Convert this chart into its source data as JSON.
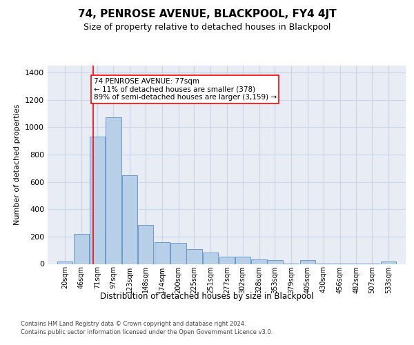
{
  "title": "74, PENROSE AVENUE, BLACKPOOL, FY4 4JT",
  "subtitle": "Size of property relative to detached houses in Blackpool",
  "xlabel": "Distribution of detached houses by size in Blackpool",
  "ylabel": "Number of detached properties",
  "bar_left_edges": [
    20,
    46,
    71,
    97,
    123,
    148,
    174,
    200,
    225,
    251,
    277,
    302,
    328,
    353,
    379,
    405,
    430,
    456,
    482,
    507,
    533
  ],
  "bar_heights": [
    20,
    220,
    930,
    1070,
    650,
    285,
    160,
    155,
    110,
    85,
    55,
    55,
    35,
    30,
    5,
    30,
    5,
    5,
    5,
    5,
    20
  ],
  "bin_width": 25,
  "bar_color": "#b8cfe8",
  "bar_edge_color": "#5b8fcc",
  "grid_color": "#ccd5e8",
  "bg_color": "#e8ecf5",
  "vline_x": 77,
  "vline_color": "red",
  "annotation_text": "74 PENROSE AVENUE: 77sqm\n← 11% of detached houses are smaller (378)\n89% of semi-detached houses are larger (3,159) →",
  "annotation_box_color": "white",
  "annotation_box_edge_color": "red",
  "ylim": [
    0,
    1450
  ],
  "yticks": [
    0,
    200,
    400,
    600,
    800,
    1000,
    1200,
    1400
  ],
  "footer_line1": "Contains HM Land Registry data © Crown copyright and database right 2024.",
  "footer_line2": "Contains public sector information licensed under the Open Government Licence v3.0.",
  "tick_labels": [
    "20sqm",
    "46sqm",
    "71sqm",
    "97sqm",
    "123sqm",
    "148sqm",
    "174sqm",
    "200sqm",
    "225sqm",
    "251sqm",
    "277sqm",
    "302sqm",
    "328sqm",
    "353sqm",
    "379sqm",
    "405sqm",
    "430sqm",
    "456sqm",
    "482sqm",
    "507sqm",
    "533sqm"
  ],
  "title_fontsize": 11,
  "subtitle_fontsize": 9,
  "ylabel_fontsize": 8,
  "xlabel_fontsize": 8.5,
  "tick_fontsize": 7,
  "ytick_fontsize": 8,
  "footer_fontsize": 6,
  "annotation_fontsize": 7.5
}
